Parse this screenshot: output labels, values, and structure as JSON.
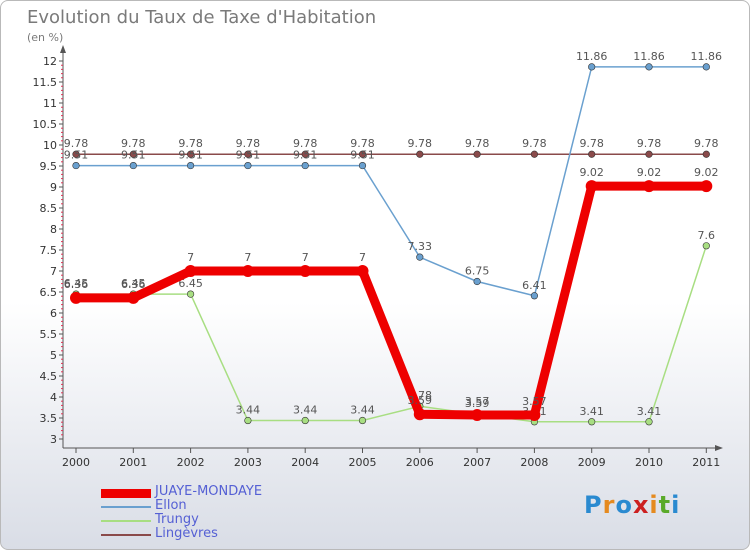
{
  "title": "Evolution du Taux de Taxe d'Habitation",
  "subtitle": "(en %)",
  "logo_text": "Proxiti",
  "chart_data": {
    "type": "line",
    "title": "Evolution du Taux de Taxe d'Habitation",
    "subtitle": "(en %)",
    "xlabel": "",
    "ylabel": "",
    "categories": [
      "2000",
      "2001",
      "2002",
      "2003",
      "2004",
      "2005",
      "2006",
      "2007",
      "2008",
      "2009",
      "2010",
      "2011"
    ],
    "ylim": [
      3,
      12
    ],
    "yticks": [
      "3",
      "3.5",
      "4",
      "4.5",
      "5",
      "5.5",
      "6",
      "6.5",
      "7",
      "7.5",
      "8",
      "8.5",
      "9",
      "9.5",
      "10",
      "10.5",
      "11",
      "11.5",
      "12"
    ],
    "legend_position": "bottom-left",
    "grid": false,
    "series": [
      {
        "name": "JUAYE-MONDAYE",
        "color": "#ee0000",
        "values": [
          6.36,
          6.36,
          7,
          7,
          7,
          7,
          3.59,
          3.57,
          3.57,
          9.02,
          9.02,
          9.02
        ],
        "labels": [
          "6.36",
          "6.36",
          "7",
          "7",
          "7",
          "7",
          "3.59",
          "3.57",
          "3.57",
          "9.02",
          "9.02",
          "9.02"
        ]
      },
      {
        "name": "Ellon",
        "color": "#6aa0cf",
        "values": [
          9.51,
          9.51,
          9.51,
          9.51,
          9.51,
          9.51,
          7.33,
          6.75,
          6.41,
          11.86,
          11.86,
          11.86
        ],
        "labels": [
          "9.51",
          "9.51",
          "9.51",
          "9.51",
          "9.51",
          "9.51",
          "7.33",
          "6.75",
          "6.41",
          "11.86",
          "11.86",
          "11.86"
        ]
      },
      {
        "name": "Trungy",
        "color": "#a8de82",
        "values": [
          6.45,
          6.45,
          6.45,
          3.44,
          3.44,
          3.44,
          3.78,
          3.59,
          3.41,
          3.41,
          3.41,
          7.6
        ],
        "labels": [
          "6.45",
          "6.45",
          "6.45",
          "3.44",
          "3.44",
          "3.44",
          "3.78",
          "3.59",
          "3.41",
          "3.41",
          "3.41",
          "7.6"
        ]
      },
      {
        "name": "Lingèvres",
        "color": "#8a4a4a",
        "values": [
          9.78,
          9.78,
          9.78,
          9.78,
          9.78,
          9.78,
          9.78,
          9.78,
          9.78,
          9.78,
          9.78,
          9.78
        ],
        "labels": [
          "9.78",
          "9.78",
          "9.78",
          "9.78",
          "9.78",
          "9.78",
          "9.78",
          "9.78",
          "9.78",
          "9.78",
          "9.78",
          "9.78"
        ]
      }
    ]
  }
}
